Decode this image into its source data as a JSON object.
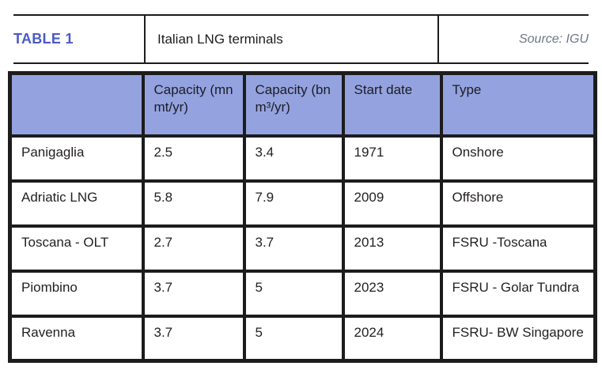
{
  "caption": {
    "label": "TABLE 1",
    "title": "Italian LNG terminals",
    "source": "Source: IGU"
  },
  "table": {
    "columns": [
      "",
      "Capacity (mn mt/yr)",
      "Capacity (bn m³/yr)",
      "Start date",
      "Type"
    ],
    "rows": [
      {
        "name": "Panigaglia",
        "capacity_mt": "2.5",
        "capacity_m3": "3.4",
        "start_date": "1971",
        "type": "Onshore"
      },
      {
        "name": "Adriatic LNG",
        "capacity_mt": "5.8",
        "capacity_m3": "7.9",
        "start_date": "2009",
        "type": "Offshore"
      },
      {
        "name": "Toscana - OLT",
        "capacity_mt": "2.7",
        "capacity_m3": "3.7",
        "start_date": "2013",
        "type": "FSRU -Toscana"
      },
      {
        "name": "Piombino",
        "capacity_mt": "3.7",
        "capacity_m3": "5",
        "start_date": "2023",
        "type": "FSRU - Golar Tundra"
      },
      {
        "name": "Ravenna",
        "capacity_mt": "3.7",
        "capacity_m3": "5",
        "start_date": "2024",
        "type": "FSRU- BW Singapore"
      }
    ]
  },
  "colors": {
    "header_fill": "#94a3df",
    "label_blue": "#4a5ac8",
    "source_gray": "#6b7886",
    "border_black": "#1c1c1c",
    "text_dark": "#231f20"
  },
  "chart_data": {
    "type": "table",
    "title": "Italian LNG terminals",
    "source": "IGU",
    "columns": [
      "",
      "Capacity (mn mt/yr)",
      "Capacity (bn m³/yr)",
      "Start date",
      "Type"
    ],
    "rows": [
      [
        "Panigaglia",
        2.5,
        3.4,
        1971,
        "Onshore"
      ],
      [
        "Adriatic LNG",
        5.8,
        7.9,
        2009,
        "Offshore"
      ],
      [
        "Toscana - OLT",
        2.7,
        3.7,
        2013,
        "FSRU -Toscana"
      ],
      [
        "Piombino",
        3.7,
        5,
        2023,
        "FSRU - Golar Tundra"
      ],
      [
        "Ravenna",
        3.7,
        5,
        2024,
        "FSRU- BW Singapore"
      ]
    ]
  }
}
